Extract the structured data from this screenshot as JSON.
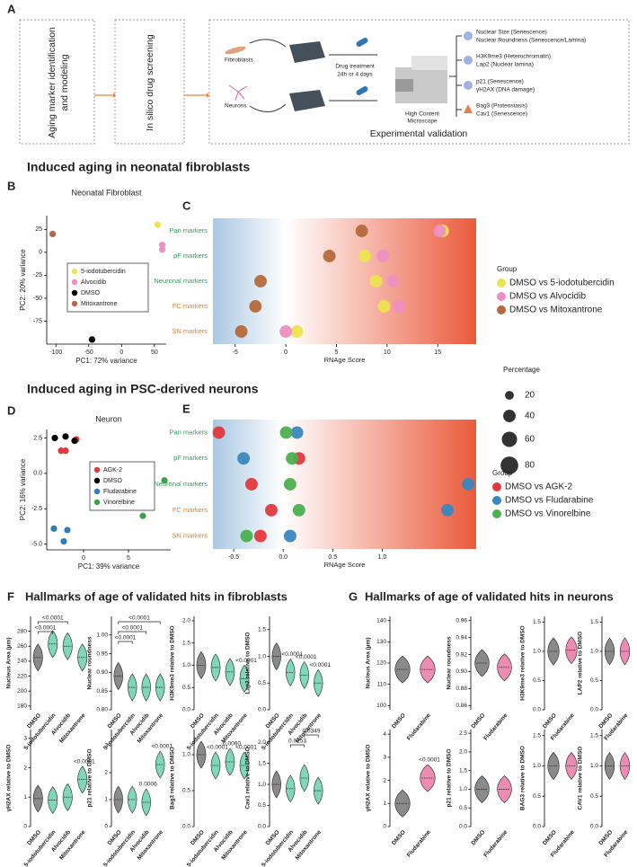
{
  "panel_labels": [
    "A",
    "B",
    "C",
    "D",
    "E",
    "F",
    "G"
  ],
  "headings": [
    "Induced aging in neonatal fibroblasts",
    "Induced aging in PSC-derived neurons",
    "Hallmarks of age of validated hits in fibroblasts",
    "Hallmarks of age of validated hits in neurons"
  ],
  "diagram": {
    "box1": [
      "Aging marker identification",
      "and modeling"
    ],
    "box2": "In silico drug screening",
    "box3": "Experimental validation",
    "cells": [
      "Fibroblasts",
      "Neurons"
    ],
    "treatment": [
      "Drug treatment",
      "24h or 4 days"
    ],
    "microscope": [
      "High Content",
      "Microscope"
    ],
    "readouts": [
      "Nuclear Size (Senescence)",
      "Nuclear Roundness (Senescence/Lamina)",
      "H3K9me3 (Heterochromatin)",
      "Lap2 (Nuclear lamina)",
      "p21 (Senescence)",
      "γH2AX (DNA damage)",
      "Bag3 (Proteostasis)",
      "Cav1 (Senescence)"
    ]
  },
  "chart_data": [
    {
      "type": "scatter",
      "title": "Neonatal Fibroblast",
      "xlabel": "PC1: 72% variance",
      "ylabel": "PC2: 20% variance",
      "xlim": [
        -114,
        68
      ],
      "ylim": [
        -100,
        40
      ],
      "xticks": [
        -100,
        -50,
        0,
        50
      ],
      "yticks": [
        25,
        0,
        -25,
        -50,
        -75
      ],
      "series": [
        {
          "name": "5-iodotubercidin",
          "color": "#ece34f",
          "x": [
            55
          ],
          "values": [
            30
          ]
        },
        {
          "name": "Alvocidib",
          "color": "#ee8fc3",
          "x": [
            62,
            62
          ],
          "values": [
            8,
            3
          ]
        },
        {
          "name": "DMSO",
          "color": "#000000",
          "x": [
            -45
          ],
          "values": [
            -95
          ]
        },
        {
          "name": "Mitoxantrone",
          "color": "#b5693c",
          "x": [
            -105
          ],
          "values": [
            20
          ]
        }
      ]
    },
    {
      "type": "dot",
      "categories": [
        "Pan markers",
        "pF markers",
        "Neuronal markers",
        "FC markers",
        "SN markers"
      ],
      "category_colors": [
        "#2e9b57",
        "#2e9b57",
        "#2e9b57",
        "#e0822f",
        "#e0822f"
      ],
      "xlabel": "RNAge Score",
      "xlim": [
        -7.2,
        18.8
      ],
      "xticks": [
        -5,
        0,
        5,
        10,
        15
      ],
      "legend_title": "Group",
      "series": [
        {
          "name": "DMSO vs 5-iodotubercidin",
          "color": "#ece34f",
          "values": [
            15.5,
            7.8,
            8.9,
            9.7,
            1.1
          ],
          "sizes": [
            40,
            40,
            40,
            40,
            40
          ]
        },
        {
          "name": "DMSO vs Alvocidib",
          "color": "#ee8fc3",
          "values": [
            15.2,
            9.6,
            10.6,
            11.2,
            0
          ],
          "sizes": [
            40,
            40,
            40,
            40,
            40
          ]
        },
        {
          "name": "DMSO vs Mitoxantrone",
          "color": "#b5693c",
          "values": [
            7.5,
            4.3,
            -2.5,
            -3.0,
            -4.4
          ],
          "sizes": [
            40,
            40,
            40,
            40,
            40
          ]
        }
      ],
      "size_legend": {
        "title": "Percentage",
        "values": [
          20,
          40,
          60,
          80
        ]
      }
    },
    {
      "type": "scatter",
      "title": "Neuron",
      "xlabel": "PC1: 39% variance",
      "ylabel": "PC2: 16% variance",
      "xlim": [
        -4.1,
        9.7
      ],
      "ylim": [
        -5.4,
        3.1
      ],
      "xticks": [
        0,
        5
      ],
      "yticks": [
        2.5,
        {
          "value": 0,
          "label": "0.0"
        },
        -2.5,
        {
          "value": -5,
          "label": "-5.0"
        }
      ],
      "series": [
        {
          "name": "AGK-2",
          "color": "#e0393e",
          "x": [
            -2.5,
            -0.8,
            -2.0
          ],
          "values": [
            1.6,
            2.4,
            1.6
          ]
        },
        {
          "name": "DMSO",
          "color": "#000000",
          "x": [
            -3.2,
            -2.0,
            -1.0
          ],
          "values": [
            2.5,
            2.6,
            2.3
          ]
        },
        {
          "name": "Fludarabine",
          "color": "#2c7fb8",
          "x": [
            -3.3,
            -1.8,
            -2.2
          ],
          "values": [
            -3.9,
            -4.0,
            -4.8
          ]
        },
        {
          "name": "Vinorelbine",
          "color": "#3aa34a",
          "x": [
            5,
            7,
            9,
            6.6
          ],
          "values": [
            0.2,
            0,
            -0.5,
            -3
          ]
        }
      ]
    },
    {
      "type": "dot",
      "categories": [
        "Pan markers",
        "pF markers",
        "Neuronal markers",
        "FC markers",
        "SN markers"
      ],
      "category_colors": [
        "#2e9b57",
        "#2e9b57",
        "#2e9b57",
        "#e0822f",
        "#e0822f"
      ],
      "xlabel": "RNAge Score",
      "xlim": [
        -0.71,
        1.95
      ],
      "xticks": [
        -0.5,
        {
          "value": 0,
          "label": "0.0"
        },
        0.5,
        {
          "value": 1,
          "label": "1.0"
        }
      ],
      "legend_title": "Group",
      "series": [
        {
          "name": "DMSO vs AGK-2",
          "color": "#e0393e",
          "values": [
            -0.65,
            0.16,
            -0.32,
            -0.12,
            -0.23
          ],
          "sizes": [
            40,
            40,
            40,
            40,
            40
          ]
        },
        {
          "name": "DMSO vs Fludarabine",
          "color": "#3a86bf",
          "values": [
            0.14,
            -0.4,
            1.87,
            1.66,
            0.07
          ],
          "sizes": [
            40,
            40,
            40,
            40,
            40
          ]
        },
        {
          "name": "DMSO vs Vinorelbine",
          "color": "#4caf50",
          "values": [
            0.03,
            0.09,
            0.07,
            0.16,
            -0.37
          ],
          "sizes": [
            40,
            40,
            40,
            40,
            40
          ]
        }
      ]
    },
    {
      "type": "violin",
      "ylabel": "Nucleus Area (µm)",
      "categories": [
        "DMSO",
        "5-iodotubercidin",
        "Alvocidib",
        "Mitoxantrone"
      ],
      "colors": [
        "#8a8a8a",
        "#7fd6b8",
        "#7fd6b8",
        "#7fd6b8"
      ],
      "values": [
        245,
        263,
        260,
        245
      ],
      "ylim": [
        175,
        300
      ],
      "yticks": [
        180,
        200,
        220,
        240,
        260,
        280
      ],
      "annotations": [
        {
          "text": "<0.0001",
          "groups": [
            "DMSO",
            "5-iodotubercidin"
          ]
        },
        {
          "text": "<0.0001",
          "groups": [
            "DMSO",
            "Alvocidib"
          ]
        }
      ]
    },
    {
      "type": "violin",
      "ylabel": "Nuclear roundness",
      "categories": [
        "DMSO",
        "5-iodotubercidin",
        "Alvocidib",
        "Mitoxantrone"
      ],
      "colors": [
        "#8a8a8a",
        "#7fd6b8",
        "#7fd6b8",
        "#7fd6b8"
      ],
      "values": [
        0.89,
        0.86,
        0.86,
        0.86
      ],
      "ylim": [
        0.8,
        1.05
      ],
      "yticks": [
        {
          "value": 0.8,
          "label": "0.80"
        },
        0.85,
        {
          "value": 0.9,
          "label": "0.90"
        },
        0.95,
        {
          "value": 1,
          "label": "1.00"
        }
      ],
      "annotations": [
        {
          "text": "<0.0001",
          "groups": [
            "DMSO",
            "5-iodotubercidin"
          ]
        },
        {
          "text": "<0.0001",
          "groups": [
            "DMSO",
            "Alvocidib"
          ]
        },
        {
          "text": "<0.0001",
          "groups": [
            "DMSO",
            "Mitoxantrone"
          ]
        }
      ]
    },
    {
      "type": "violin",
      "ylabel": "H3K9me3 relative to DMSO",
      "categories": [
        "DMSO",
        "5-iodotubercidin",
        "Alvocidib",
        "Mitoxantrone"
      ],
      "colors": [
        "#8a8a8a",
        "#7fd6b8",
        "#7fd6b8",
        "#7fd6b8"
      ],
      "values": [
        1.0,
        0.95,
        0.85,
        0.7
      ],
      "ylim": [
        0,
        2.1
      ],
      "yticks": [
        {
          "value": 0,
          "label": "0.0"
        },
        0.5,
        {
          "value": 1,
          "label": "1.0"
        },
        1.5,
        {
          "value": 2,
          "label": "2.0"
        }
      ],
      "annotations": [
        {
          "text": "<0.0001",
          "groups": [
            "Mitoxantrone"
          ]
        }
      ]
    },
    {
      "type": "violin",
      "ylabel": "Lap2 relative to DMSO",
      "categories": [
        "DMSO",
        "5-iodotubercidin",
        "Alvocidib",
        "Mitoxantrone"
      ],
      "colors": [
        "#8a8a8a",
        "#7fd6b8",
        "#7fd6b8",
        "#7fd6b8"
      ],
      "values": [
        1.0,
        0.7,
        0.65,
        0.5
      ],
      "ylim": [
        0,
        1.75
      ],
      "yticks": [
        {
          "value": 0,
          "label": "0.0"
        },
        0.5,
        {
          "value": 1,
          "label": "1.0"
        },
        1.5
      ],
      "annotations": [
        {
          "text": "<0.0001",
          "groups": [
            "5-iodotubercidin"
          ]
        },
        {
          "text": "<0.0001",
          "groups": [
            "Alvocidib"
          ]
        },
        {
          "text": "<0.0001",
          "groups": [
            "Mitoxantrone"
          ]
        }
      ]
    },
    {
      "type": "violin",
      "ylabel": "γH2AX relative to DMSO",
      "categories": [
        "DMSO",
        "5-iodotubercidin",
        "Alvocidib",
        "Mitoxantrone"
      ],
      "colors": [
        "#8a8a8a",
        "#7fd6b8",
        "#7fd6b8",
        "#7fd6b8"
      ],
      "values": [
        0.95,
        0.9,
        1.0,
        1.6
      ],
      "ylim": [
        0,
        3.3
      ],
      "yticks": [
        0,
        1,
        2,
        3
      ],
      "annotations": [
        {
          "text": "<0.0001",
          "groups": [
            "Mitoxantrone"
          ]
        }
      ]
    },
    {
      "type": "violin",
      "ylabel": "p21 relative to DMSO",
      "categories": [
        "DMSO",
        "5-iodotubercidin",
        "Alvocidib",
        "Mitoxantrone"
      ],
      "colors": [
        "#8a8a8a",
        "#7fd6b8",
        "#7fd6b8",
        "#7fd6b8"
      ],
      "values": [
        1.0,
        1.0,
        0.9,
        2.3
      ],
      "ylim": [
        0,
        3.6
      ],
      "yticks": [
        0,
        1,
        2,
        3
      ],
      "annotations": [
        {
          "text": "0.0006",
          "groups": [
            "Alvocidib"
          ]
        },
        {
          "text": "<0.0001",
          "groups": [
            "Mitoxantrone"
          ]
        }
      ]
    },
    {
      "type": "violin",
      "ylabel": "Bag3 relative to DMSO",
      "categories": [
        "DMSO",
        "5-iodotubercidin",
        "Alvocidib",
        "Mitoxantrone"
      ],
      "colors": [
        "#8a8a8a",
        "#7fd6b8",
        "#7fd6b8",
        "#7fd6b8"
      ],
      "values": [
        1.0,
        0.85,
        0.9,
        0.85
      ],
      "ylim": [
        0,
        1.35
      ],
      "yticks": [
        {
          "value": 0,
          "label": "0.0"
        },
        0.5,
        {
          "value": 1,
          "label": "1.0"
        }
      ],
      "annotations": [
        {
          "text": "<0.0001",
          "groups": [
            "5-iodotubercidin"
          ]
        },
        {
          "text": "0.0060",
          "groups": [
            "Alvocidib"
          ]
        },
        {
          "text": "<0.0001",
          "groups": [
            "Mitoxantrone"
          ]
        }
      ]
    },
    {
      "type": "violin",
      "ylabel": "Cav1 relative to DMSO",
      "categories": [
        "DMSO",
        "5-iodotubercidin",
        "Alvocidib",
        "Mitoxantrone"
      ],
      "colors": [
        "#8a8a8a",
        "#7fd6b8",
        "#7fd6b8",
        "#7fd6b8"
      ],
      "values": [
        1.0,
        0.9,
        1.15,
        0.85
      ],
      "ylim": [
        0,
        2.3
      ],
      "yticks": [
        {
          "value": 0,
          "label": "0.0"
        },
        0.5,
        {
          "value": 1,
          "label": "1.0"
        },
        1.5,
        {
          "value": 2,
          "label": "2.0"
        }
      ],
      "annotations": [
        {
          "text": "0.0253",
          "groups": [
            "5-iodotubercidin",
            "Alvocidib"
          ]
        },
        {
          "text": "0.0349",
          "groups": [
            "Alvocidib",
            "Mitoxantrone"
          ]
        }
      ]
    },
    {
      "type": "violin",
      "ylabel": "Nucleus Area (µm)",
      "categories": [
        "DMSO",
        "Fludarabine"
      ],
      "colors": [
        "#8a8a8a",
        "#ec8cb2"
      ],
      "values": [
        117,
        117
      ],
      "ylim": [
        98,
        142
      ],
      "yticks": [
        100,
        110,
        120,
        130,
        140
      ],
      "annotations": []
    },
    {
      "type": "violin",
      "ylabel": "Nuclear roundness",
      "categories": [
        "DMSO",
        "Fludarabine"
      ],
      "colors": [
        "#8a8a8a",
        "#ec8cb2"
      ],
      "values": [
        0.91,
        0.905
      ],
      "ylim": [
        0.855,
        0.965
      ],
      "yticks": [
        0.86,
        0.88,
        {
          "value": 0.9,
          "label": "0.90"
        },
        0.92,
        0.94,
        0.96
      ],
      "annotations": []
    },
    {
      "type": "violin",
      "ylabel": "H3K9me3 relative to DMSO",
      "categories": [
        "DMSO",
        "Fludarabine"
      ],
      "colors": [
        "#8a8a8a",
        "#ec8cb2"
      ],
      "values": [
        1.0,
        1.02
      ],
      "ylim": [
        0,
        1.6
      ],
      "yticks": [
        {
          "value": 0,
          "label": "0.0"
        },
        0.5,
        {
          "value": 1,
          "label": "1.0"
        },
        1.5
      ],
      "annotations": []
    },
    {
      "type": "violin",
      "ylabel": "LAP2 relative to DMSO",
      "categories": [
        "DMSO",
        "Fludarabine"
      ],
      "colors": [
        "#8a8a8a",
        "#ec8cb2"
      ],
      "values": [
        1.0,
        1.0
      ],
      "ylim": [
        0,
        1.6
      ],
      "yticks": [
        {
          "value": 0,
          "label": "0.0"
        },
        0.5,
        {
          "value": 1,
          "label": "1.0"
        },
        1.5
      ],
      "annotations": []
    },
    {
      "type": "violin",
      "ylabel": "γH2AX relative to DMSO",
      "categories": [
        "DMSO",
        "Fludarabine"
      ],
      "colors": [
        "#8a8a8a",
        "#ec8cb2"
      ],
      "values": [
        1.0,
        2.1
      ],
      "ylim": [
        0,
        4.2
      ],
      "yticks": [
        0,
        1,
        2,
        3,
        4
      ],
      "annotations": [
        {
          "text": "<0.0001",
          "groups": [
            "Fludarabine"
          ]
        }
      ]
    },
    {
      "type": "violin",
      "ylabel": "p21 relative to DMSO",
      "categories": [
        "DMSO",
        "Fludarabine"
      ],
      "colors": [
        "#8a8a8a",
        "#ec8cb2"
      ],
      "values": [
        1.0,
        1.0
      ],
      "ylim": [
        0,
        2.6
      ],
      "yticks": [
        {
          "value": 0,
          "label": "0.0"
        },
        0.5,
        {
          "value": 1,
          "label": "1.0"
        },
        1.5,
        {
          "value": 2,
          "label": "2.0"
        },
        2.5
      ],
      "annotations": []
    },
    {
      "type": "violin",
      "ylabel": "BAG3 relative to DMSO",
      "categories": [
        "DMSO",
        "Fludarabine"
      ],
      "colors": [
        "#8a8a8a",
        "#ec8cb2"
      ],
      "values": [
        1.0,
        1.0
      ],
      "ylim": [
        0,
        1.6
      ],
      "yticks": [
        {
          "value": 0,
          "label": "0.0"
        },
        0.5,
        {
          "value": 1,
          "label": "1.0"
        },
        1.5
      ],
      "annotations": []
    },
    {
      "type": "violin",
      "ylabel": "CAV1 relative to DMSO",
      "categories": [
        "DMSO",
        "Fludarabine"
      ],
      "colors": [
        "#8a8a8a",
        "#ec8cb2"
      ],
      "values": [
        1.0,
        1.0
      ],
      "ylim": [
        0,
        1.6
      ],
      "yticks": [
        {
          "value": 0,
          "label": "0.0"
        },
        0.5,
        {
          "value": 1,
          "label": "1.0"
        },
        1.5
      ],
      "annotations": []
    }
  ]
}
